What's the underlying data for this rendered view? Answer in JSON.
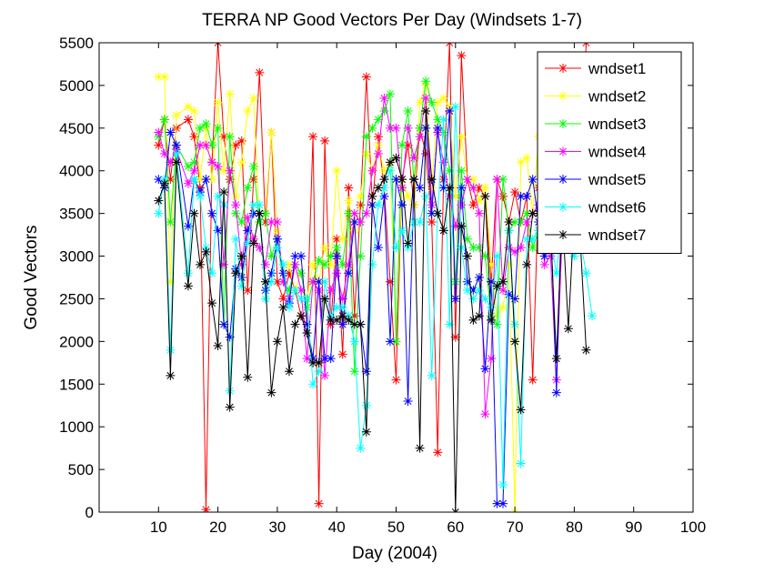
{
  "chart_data": {
    "type": "line",
    "title": "TERRA NP Good Vectors Per Day (Windsets 1-7)",
    "xlabel": "Day (2004)",
    "ylabel": "Good Vectors",
    "xlim": [
      0,
      100
    ],
    "ylim": [
      0,
      5500
    ],
    "xticks": [
      "10",
      "20",
      "30",
      "40",
      "50",
      "60",
      "70",
      "80",
      "90",
      "100"
    ],
    "yticks": [
      "0",
      "500",
      "1000",
      "1500",
      "2000",
      "2500",
      "3000",
      "3500",
      "4000",
      "4500",
      "5000",
      "5500"
    ],
    "legend_position": "top-right",
    "marker": "asterisk",
    "series": [
      {
        "name": "wndset1",
        "color": "#ff0000",
        "x": [
          10,
          11,
          12,
          13,
          15,
          16,
          17,
          18,
          19,
          20,
          21,
          22,
          23,
          24,
          25,
          26,
          27,
          28,
          29,
          30,
          31,
          32,
          33,
          34,
          35,
          36,
          37,
          38,
          39,
          40,
          41,
          42,
          43,
          44,
          45,
          46,
          47,
          48,
          49,
          50,
          51,
          52,
          53,
          54,
          55,
          56,
          57,
          58,
          59,
          60,
          61,
          62,
          63,
          64,
          65,
          66,
          67,
          68,
          69,
          70,
          71,
          72,
          73,
          74,
          75,
          76,
          77,
          78,
          79,
          80,
          81,
          82
        ],
        "y": [
          4300,
          4600,
          3900,
          4500,
          4600,
          4400,
          3800,
          30,
          4100,
          5500,
          4400,
          3900,
          4300,
          4350,
          2600,
          3900,
          5150,
          3400,
          4450,
          2700,
          2500,
          2800,
          2600,
          2300,
          2200,
          4400,
          100,
          4350,
          2200,
          3200,
          1850,
          3800,
          2300,
          3600,
          5100,
          3600,
          4400,
          3800,
          2700,
          1550,
          3900,
          4300,
          3600,
          4500,
          4200,
          3400,
          700,
          3900,
          5500,
          2050,
          5350,
          3900,
          3600,
          3800,
          3700,
          2700,
          3900,
          3700,
          3400,
          3750,
          3400,
          3700,
          1550,
          3800,
          3000,
          5300,
          3700,
          3500,
          3300,
          3400,
          3800,
          5500
        ]
      },
      {
        "name": "wndset2",
        "color": "#ffff00",
        "x": [
          10,
          11,
          12,
          13,
          15,
          16,
          17,
          18,
          19,
          20,
          21,
          22,
          23,
          24,
          25,
          26,
          27,
          28,
          29,
          30,
          31,
          32,
          33,
          34,
          35,
          36,
          37,
          38,
          39,
          40,
          41,
          42,
          43,
          44,
          45,
          46,
          47,
          48,
          49,
          50,
          51,
          52,
          53,
          54,
          55,
          56,
          57,
          58,
          59,
          60,
          61,
          62,
          63,
          64,
          65,
          66,
          67,
          68,
          69,
          70,
          71,
          72,
          73,
          74,
          75,
          76,
          77,
          78,
          79,
          80,
          81,
          82
        ],
        "y": [
          5100,
          5100,
          2700,
          4650,
          4750,
          4700,
          3900,
          4500,
          3900,
          4800,
          4000,
          4900,
          3700,
          4100,
          4700,
          4850,
          3400,
          3500,
          4450,
          3300,
          2800,
          2900,
          2600,
          2800,
          2500,
          2900,
          2700,
          3100,
          2900,
          4000,
          3200,
          3650,
          3300,
          3700,
          4200,
          4000,
          4300,
          4000,
          4100,
          2000,
          3900,
          3700,
          3600,
          4800,
          5000,
          3800,
          4800,
          4850,
          4750,
          3700,
          4400,
          3900,
          3900,
          3650,
          3800,
          2900,
          2300,
          2400,
          2900,
          0,
          4100,
          4150,
          3500,
          4400,
          3800,
          4200,
          3400,
          4000,
          3500,
          3500,
          3500,
          3600
        ]
      },
      {
        "name": "wndset3",
        "color": "#00ff00",
        "x": [
          10,
          11,
          12,
          13,
          15,
          16,
          17,
          18,
          19,
          20,
          21,
          22,
          23,
          24,
          25,
          26,
          27,
          28,
          29,
          30,
          31,
          32,
          33,
          34,
          35,
          36,
          37,
          38,
          39,
          40,
          41,
          42,
          43,
          44,
          45,
          46,
          47,
          48,
          49,
          50,
          51,
          52,
          53,
          54,
          55,
          56,
          57,
          58,
          59,
          60,
          61,
          62,
          63,
          64,
          65,
          66,
          67,
          68,
          69,
          70,
          71,
          72,
          73,
          74,
          75,
          76,
          77,
          78,
          79,
          80,
          81,
          82
        ],
        "y": [
          4400,
          4600,
          3400,
          4300,
          4050,
          4100,
          4500,
          4550,
          4300,
          4500,
          2200,
          4400,
          3500,
          3400,
          3800,
          4050,
          3400,
          3500,
          3000,
          3200,
          2700,
          2600,
          2900,
          2800,
          2400,
          2700,
          2950,
          2900,
          3000,
          3100,
          2900,
          3500,
          1650,
          3000,
          4400,
          4500,
          4600,
          4700,
          4900,
          2000,
          4300,
          4700,
          3900,
          4500,
          5050,
          4800,
          4600,
          4450,
          4000,
          2700,
          4000,
          3200,
          3100,
          3100,
          3000,
          2300,
          2200,
          3900,
          3300,
          3400,
          3400,
          3500,
          3100,
          3300,
          3200,
          3600,
          3700,
          3500,
          3400,
          3400,
          3500,
          3600
        ]
      },
      {
        "name": "wndset4",
        "color": "#ff00ff",
        "x": [
          10,
          11,
          12,
          13,
          15,
          16,
          17,
          18,
          19,
          20,
          21,
          22,
          23,
          24,
          25,
          26,
          27,
          28,
          29,
          30,
          31,
          32,
          33,
          34,
          35,
          36,
          37,
          38,
          39,
          40,
          41,
          42,
          43,
          44,
          45,
          46,
          47,
          48,
          49,
          50,
          51,
          52,
          53,
          54,
          55,
          56,
          57,
          58,
          59,
          60,
          61,
          62,
          63,
          64,
          65,
          66,
          67,
          68,
          69,
          70,
          71,
          72,
          73,
          74,
          75,
          76,
          77,
          78,
          79,
          80,
          81,
          82
        ],
        "y": [
          4450,
          4200,
          4100,
          4250,
          3850,
          4000,
          4300,
          4300,
          4100,
          4050,
          2900,
          4000,
          3600,
          2900,
          3450,
          3200,
          3100,
          2900,
          3400,
          3400,
          2700,
          2500,
          2900,
          2600,
          1800,
          2700,
          2600,
          1600,
          2600,
          2800,
          2500,
          2900,
          3500,
          3400,
          3500,
          4000,
          4200,
          4850,
          4500,
          4500,
          3800,
          4500,
          4150,
          4400,
          4850,
          3600,
          4450,
          4100,
          3700,
          3350,
          3600,
          3900,
          3800,
          3500,
          1150,
          1800,
          3900,
          2600,
          3100,
          3050,
          3100,
          3400,
          3500,
          3600,
          2900,
          3000,
          1550,
          3300,
          3400,
          3600,
          3500,
          3700
        ]
      },
      {
        "name": "wndset5",
        "color": "#0000ff",
        "x": [
          10,
          11,
          12,
          13,
          15,
          16,
          17,
          18,
          19,
          20,
          21,
          22,
          23,
          24,
          25,
          26,
          27,
          28,
          29,
          30,
          31,
          32,
          33,
          34,
          35,
          36,
          37,
          38,
          39,
          40,
          41,
          42,
          43,
          44,
          45,
          46,
          47,
          48,
          49,
          50,
          51,
          52,
          53,
          54,
          55,
          56,
          57,
          58,
          59,
          60,
          61,
          62,
          63,
          64,
          65,
          66,
          67,
          68,
          69,
          70,
          71,
          72,
          73,
          74,
          75,
          76,
          77,
          78,
          79,
          80,
          81,
          82
        ],
        "y": [
          3900,
          3800,
          4450,
          4300,
          3350,
          3900,
          3750,
          3900,
          3500,
          3300,
          2200,
          2050,
          2850,
          2750,
          3300,
          3500,
          3500,
          2600,
          2800,
          3200,
          2800,
          2450,
          3000,
          3000,
          2200,
          1800,
          2700,
          1800,
          1800,
          3000,
          2200,
          2800,
          3400,
          2200,
          1650,
          3600,
          3100,
          3700,
          2000,
          3900,
          3600,
          1300,
          3900,
          3800,
          4500,
          3500,
          4500,
          3800,
          4700,
          2500,
          3800,
          2700,
          2600,
          2750,
          1680,
          2700,
          100,
          100,
          2550,
          2500,
          3700,
          3700,
          3900,
          3400,
          3000,
          3500,
          1400,
          3900,
          3700,
          3400,
          3300,
          3700
        ]
      },
      {
        "name": "wndset6",
        "color": "#00ffff",
        "x": [
          10,
          11,
          12,
          13,
          15,
          16,
          17,
          18,
          19,
          20,
          21,
          22,
          23,
          24,
          25,
          26,
          27,
          28,
          29,
          30,
          31,
          32,
          33,
          34,
          35,
          36,
          37,
          38,
          39,
          40,
          41,
          42,
          43,
          44,
          45,
          46,
          47,
          48,
          49,
          50,
          51,
          52,
          53,
          54,
          55,
          56,
          57,
          58,
          59,
          60,
          61,
          62,
          63,
          64,
          65,
          66,
          67,
          68,
          69,
          70,
          71,
          72,
          73,
          74,
          75,
          76,
          77,
          78,
          79,
          80,
          81,
          82,
          83
        ],
        "y": [
          3500,
          3900,
          1900,
          4200,
          2800,
          3900,
          3700,
          3100,
          2800,
          3700,
          3600,
          1420,
          3200,
          2650,
          3150,
          3600,
          3600,
          2500,
          2700,
          3100,
          2900,
          2400,
          2600,
          2500,
          2500,
          1500,
          1650,
          2700,
          2300,
          2400,
          2400,
          2300,
          2000,
          750,
          1250,
          2900,
          3600,
          3800,
          4000,
          3100,
          3300,
          3100,
          3400,
          3400,
          3700,
          1600,
          3500,
          4600,
          2200,
          4750,
          3100,
          2600,
          2500,
          2600,
          2500,
          2400,
          3000,
          320,
          3300,
          2200,
          570,
          3200,
          3200,
          3300,
          3500,
          3200,
          2800,
          3500,
          3300,
          3000,
          3200,
          2800,
          2300
        ]
      },
      {
        "name": "wndset7",
        "color": "#000000",
        "x": [
          10,
          11,
          12,
          13,
          15,
          16,
          17,
          18,
          19,
          20,
          21,
          22,
          23,
          24,
          25,
          26,
          27,
          28,
          29,
          30,
          31,
          32,
          33,
          34,
          35,
          36,
          37,
          38,
          39,
          40,
          41,
          42,
          43,
          44,
          45,
          46,
          47,
          48,
          49,
          50,
          51,
          52,
          53,
          54,
          55,
          56,
          57,
          58,
          59,
          60,
          61,
          62,
          63,
          64,
          65,
          66,
          67,
          68,
          69,
          70,
          71,
          72,
          73,
          74,
          75,
          76,
          77,
          78,
          79,
          80,
          81,
          82
        ],
        "y": [
          3650,
          3850,
          1600,
          4100,
          2650,
          3500,
          2900,
          3050,
          2450,
          1950,
          3750,
          1230,
          2800,
          3000,
          1580,
          3150,
          3500,
          2700,
          1400,
          2000,
          2400,
          1650,
          2200,
          2300,
          2100,
          1750,
          1750,
          2500,
          2250,
          2250,
          2300,
          2250,
          2200,
          2200,
          940,
          3700,
          3800,
          3900,
          4100,
          4150,
          3900,
          3150,
          3900,
          750,
          4700,
          3900,
          3500,
          3300,
          3800,
          0,
          3350,
          3000,
          2250,
          2300,
          3700,
          2250,
          2650,
          2700,
          3400,
          2000,
          1200,
          2900,
          3500,
          3500,
          3700,
          3300,
          1800,
          3500,
          2150,
          3500,
          3200,
          1900
        ]
      }
    ]
  }
}
